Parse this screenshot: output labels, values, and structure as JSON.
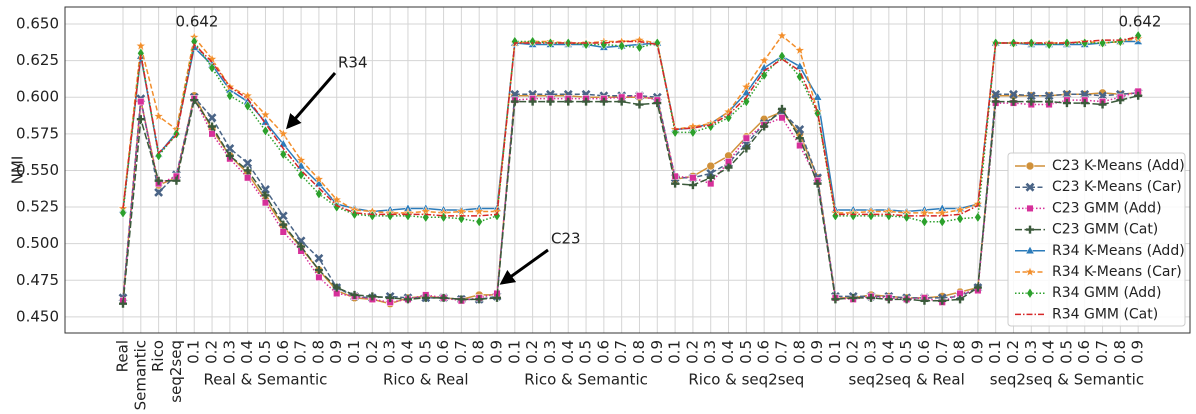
{
  "chart_data": {
    "type": "line",
    "y_label": "NMI",
    "categories": [
      "Real",
      "Semantic",
      "Rico",
      "seq2seq",
      "0.1",
      "0.2",
      "0.3",
      "0.4",
      "0.5",
      "0.6",
      "0.7",
      "0.8",
      "0.9",
      "0.1",
      "0.2",
      "0.3",
      "0.4",
      "0.5",
      "0.6",
      "0.7",
      "0.8",
      "0.9",
      "0.1",
      "0.2",
      "0.3",
      "0.4",
      "0.5",
      "0.6",
      "0.7",
      "0.8",
      "0.9",
      "0.1",
      "0.2",
      "0.3",
      "0.4",
      "0.5",
      "0.6",
      "0.7",
      "0.8",
      "0.9",
      "0.1",
      "0.2",
      "0.3",
      "0.4",
      "0.5",
      "0.6",
      "0.7",
      "0.8",
      "0.9",
      "0.1",
      "0.2",
      "0.3",
      "0.4",
      "0.5",
      "0.6",
      "0.7",
      "0.8",
      "0.9"
    ],
    "groups": [
      "Real & Semantic",
      "Rico & Real",
      "Rico & Semantic",
      "Rico & seq2seq",
      "seq2seq & Real",
      "seq2seq & Semantic"
    ],
    "annotations": [
      "0.642",
      "R34",
      "C23",
      "0.642"
    ],
    "ylim": [
      0.439,
      0.6616
    ],
    "yticks": [
      {
        "value": 0.45,
        "label": "0.450"
      },
      0.475,
      {
        "value": 0.5,
        "label": "0.500"
      },
      0.525,
      {
        "value": 0.55,
        "label": "0.550"
      },
      0.575,
      {
        "value": 0.6,
        "label": "0.600"
      },
      0.625,
      {
        "value": 0.65,
        "label": "0.650"
      }
    ],
    "grid": true,
    "legend": "lower right",
    "series": [
      {
        "name": "C23 K-Means (Add)",
        "color": "#d0913a",
        "marker": "circle",
        "dash": "solid",
        "values": [
          0.462,
          0.598,
          0.54,
          0.545,
          0.601,
          0.578,
          0.56,
          0.548,
          0.53,
          0.512,
          0.497,
          0.482,
          0.468,
          0.463,
          0.462,
          0.459,
          0.463,
          0.464,
          0.463,
          0.462,
          0.465,
          0.465,
          0.601,
          0.601,
          0.601,
          0.601,
          0.6,
          0.6,
          0.6,
          0.6,
          0.599,
          0.544,
          0.546,
          0.553,
          0.56,
          0.573,
          0.585,
          0.59,
          0.575,
          0.545,
          0.463,
          0.463,
          0.465,
          0.464,
          0.463,
          0.463,
          0.464,
          0.467,
          0.47,
          0.601,
          0.601,
          0.601,
          0.601,
          0.602,
          0.602,
          0.603,
          0.602,
          0.603
        ]
      },
      {
        "name": "C23 K-Means (Car)",
        "color": "#4a6486",
        "marker": "x",
        "dash": "dashed",
        "values": [
          0.463,
          0.599,
          0.535,
          0.547,
          0.6,
          0.586,
          0.565,
          0.555,
          0.537,
          0.519,
          0.502,
          0.49,
          0.47,
          0.464,
          0.463,
          0.464,
          0.463,
          0.463,
          0.463,
          0.462,
          0.462,
          0.464,
          0.602,
          0.602,
          0.602,
          0.602,
          0.602,
          0.601,
          0.601,
          0.601,
          0.6,
          0.545,
          0.545,
          0.548,
          0.555,
          0.568,
          0.582,
          0.59,
          0.578,
          0.545,
          0.464,
          0.464,
          0.464,
          0.464,
          0.463,
          0.463,
          0.463,
          0.464,
          0.47,
          0.602,
          0.602,
          0.601,
          0.601,
          0.602,
          0.602,
          0.601,
          0.602,
          0.603
        ]
      },
      {
        "name": "C23 GMM (Add)",
        "color": "#d6309a",
        "marker": "square",
        "dash": "dotted",
        "values": [
          0.461,
          0.597,
          0.541,
          0.546,
          0.599,
          0.575,
          0.558,
          0.545,
          0.528,
          0.508,
          0.495,
          0.477,
          0.466,
          0.464,
          0.462,
          0.46,
          0.462,
          0.465,
          0.463,
          0.461,
          0.463,
          0.466,
          0.598,
          0.599,
          0.599,
          0.599,
          0.599,
          0.599,
          0.6,
          0.601,
          0.598,
          0.546,
          0.545,
          0.541,
          0.556,
          0.572,
          0.581,
          0.586,
          0.567,
          0.543,
          0.463,
          0.462,
          0.464,
          0.463,
          0.462,
          0.463,
          0.46,
          0.466,
          0.468,
          0.596,
          0.596,
          0.595,
          0.595,
          0.598,
          0.598,
          0.597,
          0.6,
          0.604
        ]
      },
      {
        "name": "C23 GMM (Cat)",
        "color": "#3b5a3b",
        "marker": "plus",
        "dash": "longdash",
        "values": [
          0.459,
          0.585,
          0.543,
          0.543,
          0.598,
          0.58,
          0.56,
          0.55,
          0.533,
          0.513,
          0.498,
          0.482,
          0.47,
          0.465,
          0.464,
          0.463,
          0.462,
          0.463,
          0.463,
          0.462,
          0.462,
          0.463,
          0.597,
          0.597,
          0.597,
          0.597,
          0.597,
          0.597,
          0.597,
          0.595,
          0.596,
          0.541,
          0.54,
          0.545,
          0.552,
          0.565,
          0.58,
          0.592,
          0.572,
          0.541,
          0.462,
          0.463,
          0.463,
          0.462,
          0.462,
          0.461,
          0.461,
          0.462,
          0.47,
          0.597,
          0.597,
          0.597,
          0.597,
          0.596,
          0.596,
          0.595,
          0.598,
          0.601
        ]
      },
      {
        "name": "R34 K-Means (Add)",
        "color": "#2b7bba",
        "marker": "triangle",
        "dash": "solid",
        "values": [
          0.523,
          0.628,
          0.561,
          0.576,
          0.634,
          0.622,
          0.605,
          0.597,
          0.583,
          0.568,
          0.553,
          0.541,
          0.527,
          0.524,
          0.522,
          0.523,
          0.524,
          0.524,
          0.523,
          0.523,
          0.524,
          0.524,
          0.637,
          0.636,
          0.636,
          0.636,
          0.636,
          0.634,
          0.635,
          0.636,
          0.637,
          0.578,
          0.579,
          0.582,
          0.59,
          0.603,
          0.62,
          0.628,
          0.621,
          0.6,
          0.523,
          0.523,
          0.523,
          0.523,
          0.522,
          0.523,
          0.524,
          0.524,
          0.527,
          0.637,
          0.637,
          0.636,
          0.636,
          0.636,
          0.636,
          0.637,
          0.638,
          0.638
        ]
      },
      {
        "name": "R34 K-Means (Car)",
        "color": "#f28e2b",
        "marker": "star",
        "dash": "dashed",
        "values": [
          0.524,
          0.635,
          0.587,
          0.578,
          0.641,
          0.626,
          0.607,
          0.601,
          0.588,
          0.575,
          0.557,
          0.544,
          0.53,
          0.523,
          0.522,
          0.521,
          0.521,
          0.522,
          0.521,
          0.522,
          0.522,
          0.522,
          0.637,
          0.638,
          0.638,
          0.637,
          0.637,
          0.638,
          0.638,
          0.639,
          0.637,
          0.578,
          0.58,
          0.582,
          0.59,
          0.607,
          0.625,
          0.642,
          0.632,
          0.59,
          0.521,
          0.521,
          0.522,
          0.522,
          0.521,
          0.521,
          0.521,
          0.523,
          0.527,
          0.637,
          0.637,
          0.637,
          0.637,
          0.637,
          0.638,
          0.637,
          0.638,
          0.64
        ]
      },
      {
        "name": "R34 GMM (Add)",
        "color": "#2ca02c",
        "marker": "diamond",
        "dash": "dotted",
        "values": [
          0.521,
          0.63,
          0.56,
          0.575,
          0.638,
          0.62,
          0.601,
          0.594,
          0.577,
          0.561,
          0.547,
          0.534,
          0.525,
          0.52,
          0.519,
          0.519,
          0.519,
          0.518,
          0.518,
          0.517,
          0.515,
          0.519,
          0.638,
          0.638,
          0.637,
          0.637,
          0.636,
          0.636,
          0.635,
          0.634,
          0.637,
          0.576,
          0.576,
          0.58,
          0.586,
          0.597,
          0.615,
          0.628,
          0.614,
          0.589,
          0.519,
          0.519,
          0.519,
          0.519,
          0.518,
          0.515,
          0.515,
          0.517,
          0.518,
          0.637,
          0.637,
          0.637,
          0.636,
          0.637,
          0.637,
          0.637,
          0.638,
          0.642
        ]
      },
      {
        "name": "R34 GMM (Cat)",
        "color": "#d62728",
        "marker": "none",
        "dash": "dashdot",
        "values": [
          0.524,
          0.629,
          0.562,
          0.574,
          0.636,
          0.624,
          0.607,
          0.599,
          0.582,
          0.565,
          0.55,
          0.538,
          0.526,
          0.521,
          0.52,
          0.52,
          0.52,
          0.52,
          0.519,
          0.519,
          0.519,
          0.52,
          0.637,
          0.637,
          0.637,
          0.637,
          0.637,
          0.637,
          0.638,
          0.638,
          0.636,
          0.578,
          0.579,
          0.581,
          0.588,
          0.6,
          0.618,
          0.626,
          0.618,
          0.59,
          0.52,
          0.52,
          0.52,
          0.52,
          0.519,
          0.519,
          0.519,
          0.52,
          0.526,
          0.637,
          0.637,
          0.637,
          0.637,
          0.637,
          0.638,
          0.639,
          0.639,
          0.641
        ]
      }
    ]
  }
}
